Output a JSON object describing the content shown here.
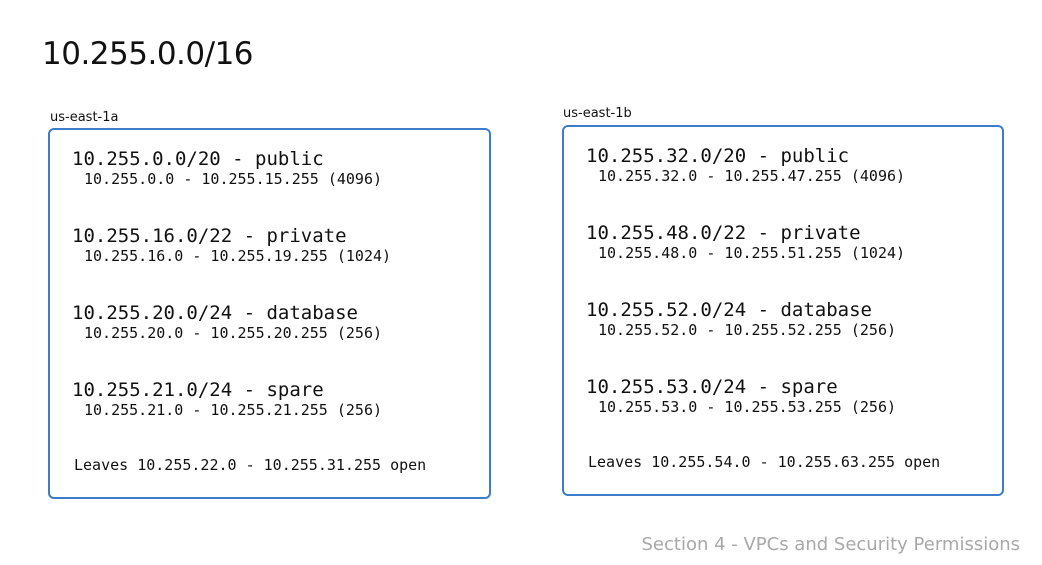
{
  "title": "10.255.0.0/16",
  "footer": "Section 4 - VPCs and Security Permissions",
  "zones": [
    {
      "label": "us-east-1a",
      "subnets": [
        {
          "title": "10.255.0.0/20 - public",
          "range": "10.255.0.0 - 10.255.15.255 (4096)"
        },
        {
          "title": "10.255.16.0/22 - private",
          "range": "10.255.16.0 - 10.255.19.255 (1024)"
        },
        {
          "title": "10.255.20.0/24 - database",
          "range": "10.255.20.0 - 10.255.20.255 (256)"
        },
        {
          "title": "10.255.21.0/24 - spare",
          "range": "10.255.21.0 - 10.255.21.255 (256)"
        }
      ],
      "leaves": "Leaves 10.255.22.0 - 10.255.31.255 open"
    },
    {
      "label": "us-east-1b",
      "subnets": [
        {
          "title": "10.255.32.0/20 - public",
          "range": "10.255.32.0 - 10.255.47.255 (4096)"
        },
        {
          "title": "10.255.48.0/22 - private",
          "range": "10.255.48.0 - 10.255.51.255 (1024)"
        },
        {
          "title": "10.255.52.0/24 - database",
          "range": "10.255.52.0 - 10.255.52.255 (256)"
        },
        {
          "title": "10.255.53.0/24 - spare",
          "range": "10.255.53.0 - 10.255.53.255 (256)"
        }
      ],
      "leaves": "Leaves 10.255.54.0 - 10.255.63.255 open"
    }
  ]
}
